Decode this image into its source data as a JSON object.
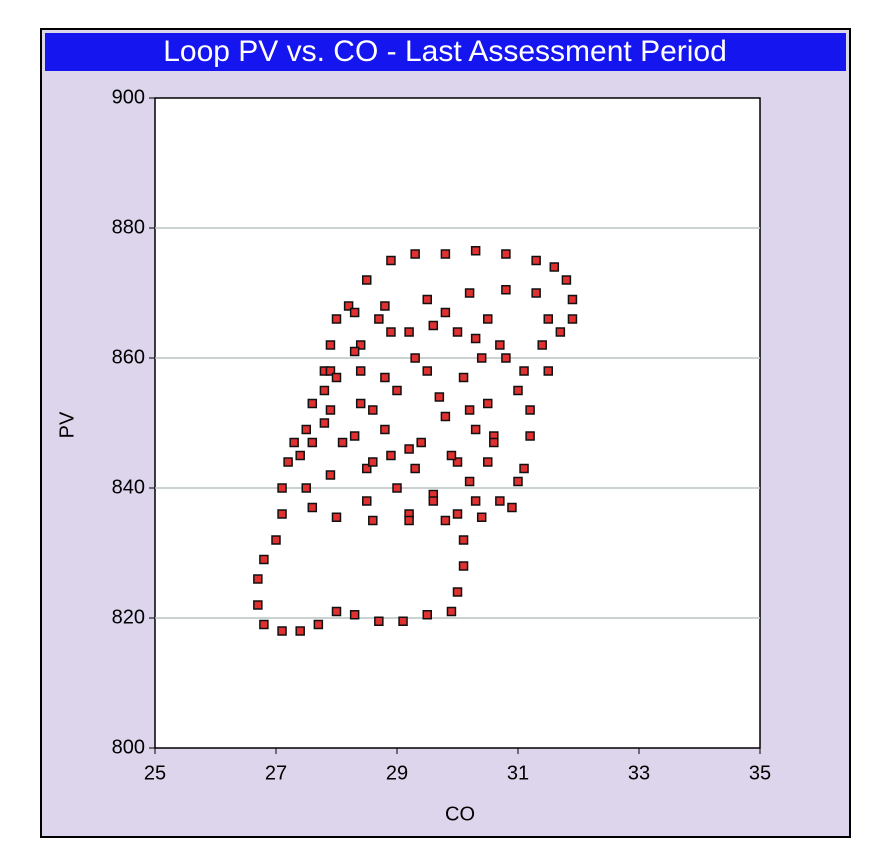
{
  "chart_data": {
    "type": "scatter",
    "title": "Loop PV vs. CO - Last Assessment Period",
    "x_label": "CO",
    "y_label": "PV",
    "x": [
      30.1,
      30.1,
      30.0,
      29.9,
      29.5,
      29.1,
      28.7,
      28.3,
      28.0,
      27.7,
      27.4,
      27.1,
      26.8,
      26.7,
      26.7,
      26.8,
      27.0,
      27.1,
      27.1,
      27.2,
      27.3,
      27.5,
      27.8,
      27.9,
      28.0,
      28.2,
      28.5,
      28.9,
      29.3,
      29.8,
      30.3,
      30.8,
      31.3,
      31.6,
      31.8,
      31.9,
      31.9,
      31.7,
      31.3,
      30.8,
      30.2,
      29.5,
      28.8,
      28.3,
      31.2,
      31.1,
      30.7,
      30.0,
      29.2,
      28.4,
      27.9,
      27.6,
      27.6,
      27.9,
      28.5,
      29.2,
      30.0,
      30.7,
      31.1,
      31.2,
      30.6,
      30.5,
      30.1,
      29.5,
      28.8,
      28.4,
      28.3,
      28.5,
      29.0,
      29.6,
      30.2,
      30.5,
      31.0,
      30.8,
      30.3,
      29.6,
      28.9,
      28.3,
      28.0,
      27.9,
      28.1,
      28.6,
      29.3,
      30.0,
      30.6,
      27.5,
      27.6,
      28.0,
      28.6,
      29.2,
      29.8,
      30.4,
      30.9,
      31.0,
      28.8,
      29.2,
      29.8,
      30.2,
      28.6,
      29.0,
      29.7,
      30.3,
      29.4,
      28.9,
      29.9,
      30.3,
      29.6,
      28.4,
      29.3,
      30.4,
      31.5,
      31.4,
      31.5,
      30.5,
      29.8,
      28.7,
      27.8,
      27.8,
      27.4
    ],
    "values": [
      832,
      828,
      824,
      821,
      820.5,
      819.5,
      819.5,
      820.5,
      821,
      819,
      818,
      818,
      819,
      822,
      826,
      829,
      832,
      836,
      840,
      844,
      847,
      849,
      858,
      862,
      866,
      868,
      872,
      875,
      876,
      876,
      876.5,
      876,
      875,
      874,
      872,
      869,
      866,
      864,
      870,
      870.5,
      870,
      869,
      868,
      867,
      852,
      858,
      862,
      864,
      864,
      862,
      858,
      853,
      847,
      842,
      838,
      836,
      836,
      838,
      843,
      848,
      848,
      853,
      857,
      858,
      857,
      853,
      848,
      843,
      840,
      839,
      841,
      844,
      855,
      860,
      863,
      865,
      864,
      861,
      857,
      852,
      847,
      844,
      843,
      844,
      847,
      840,
      837,
      835.5,
      835,
      835,
      835,
      835.5,
      837,
      841,
      849,
      846,
      851,
      852,
      852,
      855,
      854,
      849,
      847,
      845,
      845,
      838,
      838,
      858,
      860,
      860,
      858,
      862,
      866,
      866,
      867,
      866,
      855,
      850,
      845
    ],
    "color": "#e03030",
    "xlim": [
      25,
      35
    ],
    "xticks": [
      25,
      27,
      29,
      31,
      33,
      35
    ],
    "ylim": [
      800,
      900
    ],
    "yticks": [
      800,
      820,
      840,
      860,
      880,
      900
    ],
    "grid": true
  }
}
